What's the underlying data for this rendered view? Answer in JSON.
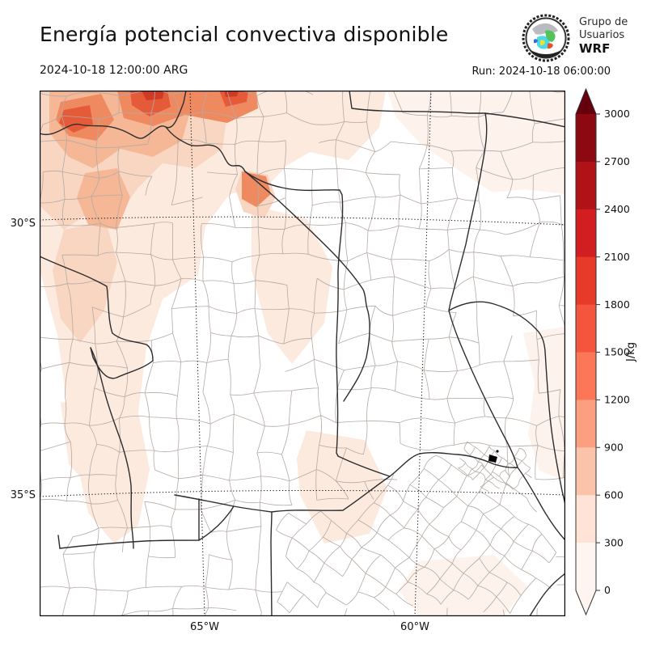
{
  "header": {
    "title": "Energía potencial convectiva disponible",
    "valid_time": "2024-10-18 12:00:00 ARG",
    "run": "Run: 2024-10-18 06:00:00"
  },
  "logo": {
    "line1": "Grupo de",
    "line2": "Usuarios",
    "line3": "WRF"
  },
  "axes": {
    "lat": [
      {
        "label": "30°S"
      },
      {
        "label": "35°S"
      }
    ],
    "lon": [
      {
        "label": "65°W"
      },
      {
        "label": "60°W"
      }
    ]
  },
  "colorbar": {
    "unit": "J/kg",
    "tick_labels": [
      "3000",
      "2700",
      "2400",
      "2100",
      "1800",
      "1500",
      "1200",
      "900",
      "600",
      "300",
      "0"
    ],
    "segment_colors_top_to_bottom": [
      "#8c0912",
      "#b11218",
      "#d21e20",
      "#e73a28",
      "#f5553d",
      "#fb7757",
      "#fc9e80",
      "#fcc3ab",
      "#fee3d6",
      "#fff5f0"
    ],
    "arrow_top": "#67000d",
    "arrow_bottom": "#fff5f0"
  },
  "map_colors": {
    "province_border": "#2d2d2d",
    "department_border": "#b3aaa5",
    "grid": "#000000",
    "shade_levels": [
      "#fdf2ec",
      "#fdeadf",
      "#f9d6c2",
      "#f5b795",
      "#ef8a60",
      "#e55a39",
      "#cf3b24"
    ]
  }
}
